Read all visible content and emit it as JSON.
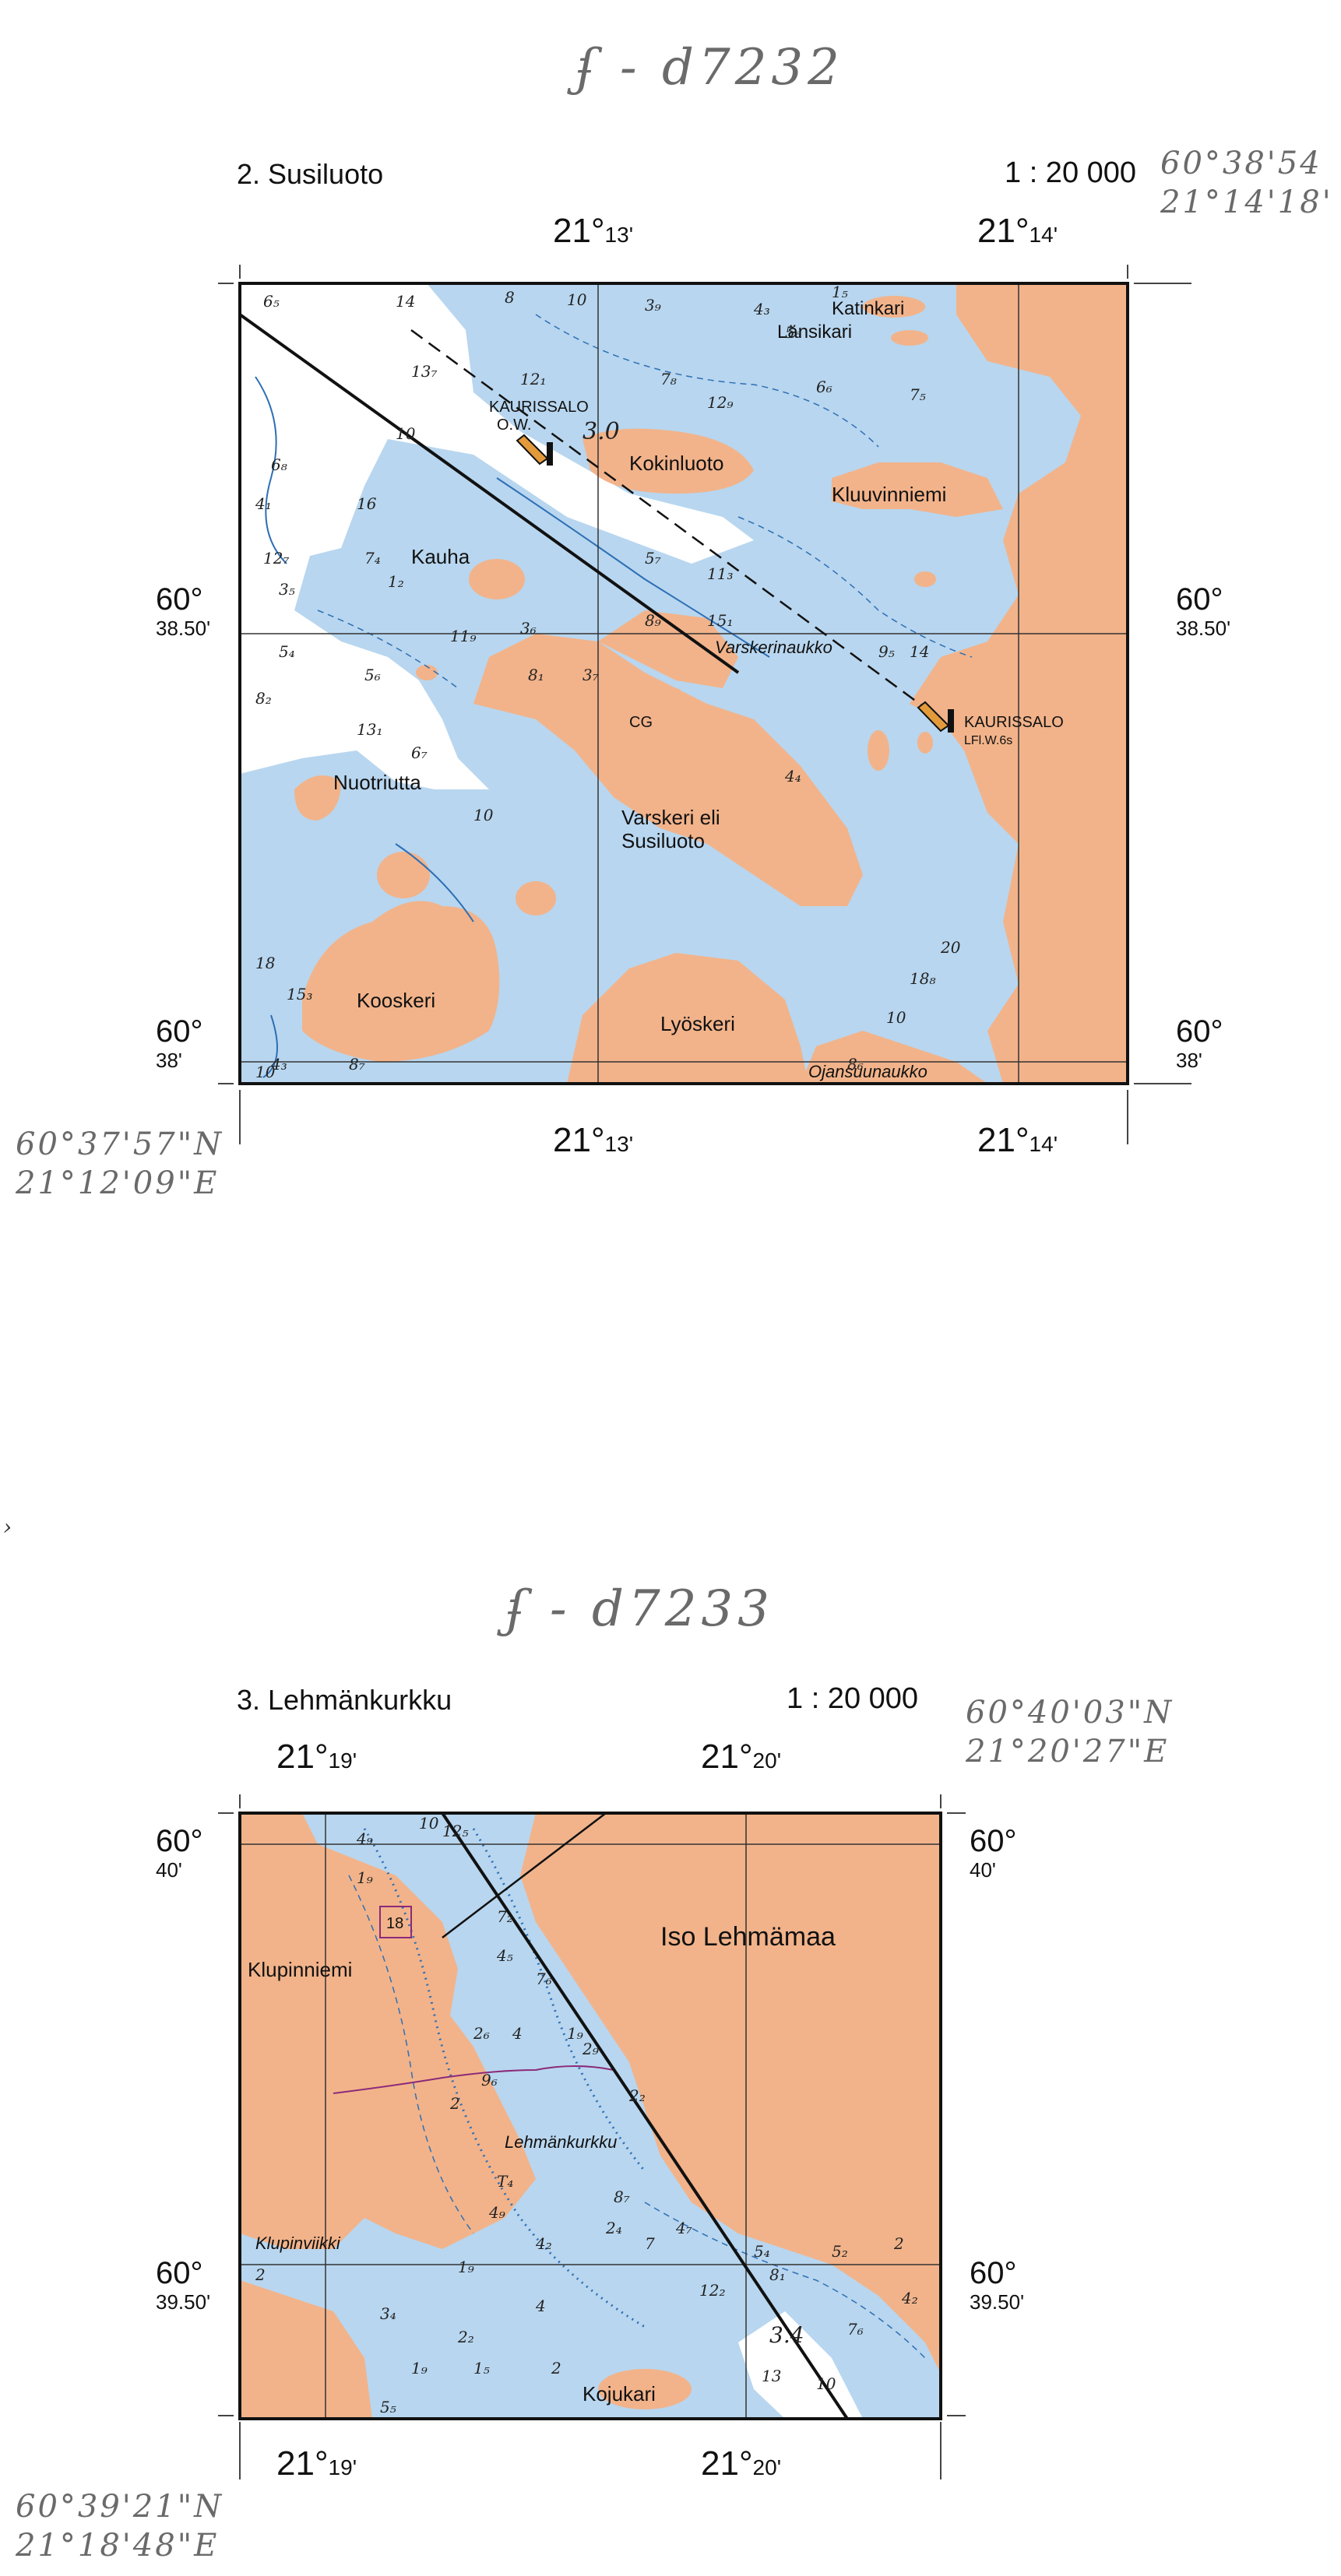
{
  "annotations": {
    "top_code": "ʄ - d7232",
    "top_right_coord": [
      "60°38'54",
      "21°14'18'"
    ],
    "top_left_coord": [
      "60°37'57\"N",
      "21°12'09\"E"
    ],
    "bottom_code": "ʄ - d7233",
    "bottom_right_coord": [
      "60°40'03\"N",
      "21°20'27\"E"
    ],
    "bottom_left_coord": [
      "60°39'21\"N",
      "21°18'48\"E"
    ],
    "stray_mark": "›"
  },
  "map1": {
    "title": "2. Susiluoto",
    "scale": "1 : 20 000",
    "top_labels": [
      {
        "deg": "21°",
        "min": "13'"
      },
      {
        "deg": "21°",
        "min": "14'"
      }
    ],
    "bottom_labels": [
      {
        "deg": "21°",
        "min": "13'"
      },
      {
        "deg": "21°",
        "min": "14'"
      }
    ],
    "left_labels": [
      {
        "deg": "60°",
        "min": "38.50'"
      },
      {
        "deg": "60°",
        "min": "38'"
      }
    ],
    "right_labels": [
      {
        "deg": "60°",
        "min": "38.50'"
      },
      {
        "deg": "60°",
        "min": "38'"
      }
    ],
    "places": [
      "Katinkari",
      "Länsikari",
      "KAURISSALO",
      "O.W.",
      "Kokinluoto",
      "Kluuvinniemi",
      "Kauha",
      "Varskerinaukko",
      "CG",
      "KAURISSALO",
      "LFl.W.6s",
      "Nuotriutta",
      "Varskeri eli",
      "Susiluoto",
      "Kooskeri",
      "Lyöskeri",
      "Ojansuunaukko"
    ],
    "depths": [
      "6₅",
      "14",
      "8",
      "10",
      "3₉",
      "4₃",
      "1₅",
      "5₆",
      "13₇",
      "12₁",
      "7₈",
      "6₆",
      "7₅",
      "6₈",
      "10",
      "3.0",
      "12₉",
      "4₁",
      "16",
      "12₇",
      "7₄",
      "5₇",
      "11₃",
      "3₅",
      "1₂",
      "8₉",
      "15₁",
      "11₉",
      "3₆",
      "5₄",
      "5₆",
      "8₁",
      "9₅",
      "3₇",
      "8₂",
      "13₁",
      "4₄",
      "14",
      "6₇",
      "10",
      "18",
      "15₃",
      "4₃",
      "10",
      "8₇",
      "8₆",
      "10",
      "18₈",
      "20"
    ]
  },
  "map2": {
    "title": "3. Lehmänkurkku",
    "scale": "1 : 20 000",
    "top_labels": [
      {
        "deg": "21°",
        "min": "19'"
      },
      {
        "deg": "21°",
        "min": "20'"
      }
    ],
    "bottom_labels": [
      {
        "deg": "21°",
        "min": "19'"
      },
      {
        "deg": "21°",
        "min": "20'"
      }
    ],
    "left_labels": [
      {
        "deg": "60°",
        "min": "40'"
      },
      {
        "deg": "60°",
        "min": "39.50'"
      }
    ],
    "right_labels": [
      {
        "deg": "60°",
        "min": "40'"
      },
      {
        "deg": "60°",
        "min": "39.50'"
      }
    ],
    "places": [
      "Iso Lehmämaa",
      "Klupinniemi",
      "Lehmänkurkku",
      "Klupinviikki",
      "Kojukari"
    ],
    "marker": "18",
    "depths": [
      "10",
      "4₉",
      "12₅",
      "1₉",
      "7₂",
      "4₅",
      "7₆",
      "2₆",
      "4",
      "1₉",
      "2₉",
      "9₆",
      "2",
      "2₂",
      "T₄",
      "8₇",
      "2₄",
      "4₇",
      "4₉",
      "4₂",
      "7",
      "5₄",
      "5₂",
      "2",
      "1₉",
      "8₁",
      "2",
      "12₂",
      "4₂",
      "3₄",
      "2₂",
      "4",
      "7₆",
      "1₉",
      "1₅",
      "2",
      "5₅",
      "3.4",
      "13",
      "10"
    ]
  },
  "colors": {
    "land": "#f2b38a",
    "water": "#b8d6ef",
    "deep": "#ffffff",
    "contour": "#2d6fb5",
    "route": "#111111"
  }
}
